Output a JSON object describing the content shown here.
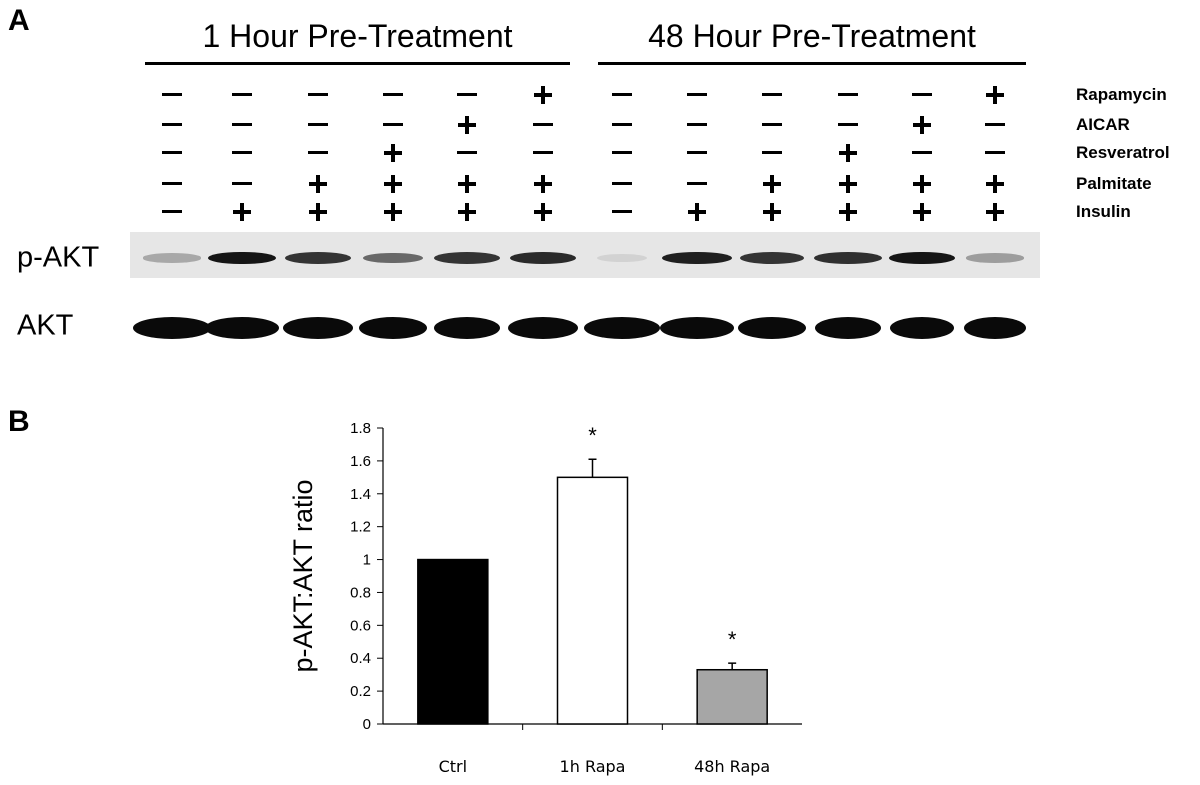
{
  "panel_a": {
    "letter": "A",
    "groups": [
      "1 Hour Pre-Treatment",
      "48 Hour Pre-Treatment"
    ],
    "treatments": [
      {
        "name": "Rapamycin",
        "signs": [
          "-",
          "-",
          "-",
          "-",
          "-",
          "+",
          "-",
          "-",
          "-",
          "-",
          "-",
          "+"
        ]
      },
      {
        "name": "AICAR",
        "signs": [
          "-",
          "-",
          "-",
          "-",
          "+",
          "-",
          "-",
          "-",
          "-",
          "-",
          "+",
          "-"
        ]
      },
      {
        "name": "Resveratrol",
        "signs": [
          "-",
          "-",
          "-",
          "+",
          "-",
          "-",
          "-",
          "-",
          "-",
          "+",
          "-",
          "-"
        ]
      },
      {
        "name": "Palmitate",
        "signs": [
          "-",
          "-",
          "+",
          "+",
          "+",
          "+",
          "-",
          "-",
          "+",
          "+",
          "+",
          "+"
        ]
      },
      {
        "name": "Insulin",
        "signs": [
          "-",
          "+",
          "+",
          "+",
          "+",
          "+",
          "-",
          "+",
          "+",
          "+",
          "+",
          "+"
        ]
      }
    ],
    "blots": [
      {
        "label": "p-AKT",
        "band_intensity": [
          0.25,
          0.95,
          0.8,
          0.55,
          0.8,
          0.85,
          0.05,
          0.9,
          0.8,
          0.82,
          0.95,
          0.3
        ]
      },
      {
        "label": "AKT",
        "band_intensity": [
          1,
          1,
          1,
          1,
          1,
          1,
          1,
          1,
          1,
          1,
          1,
          1
        ]
      }
    ]
  },
  "panel_b": {
    "letter": "B"
  },
  "chart_data": {
    "type": "bar",
    "categories": [
      "Ctrl",
      "1h Rapa",
      "48h Rapa"
    ],
    "values": [
      1.0,
      1.5,
      0.33
    ],
    "errors": [
      0,
      0.11,
      0.04
    ],
    "significance": [
      "",
      "*",
      "*"
    ],
    "bar_colors": [
      "#000000",
      "#ffffff",
      "#a6a6a6"
    ],
    "ylabel": "p-AKT:AKT ratio",
    "xlabel": "",
    "ylim": [
      0,
      1.8
    ],
    "yticks": [
      0,
      0.2,
      0.4,
      0.6,
      0.8,
      1,
      1.2,
      1.4,
      1.6,
      1.8
    ],
    "grid": false
  }
}
